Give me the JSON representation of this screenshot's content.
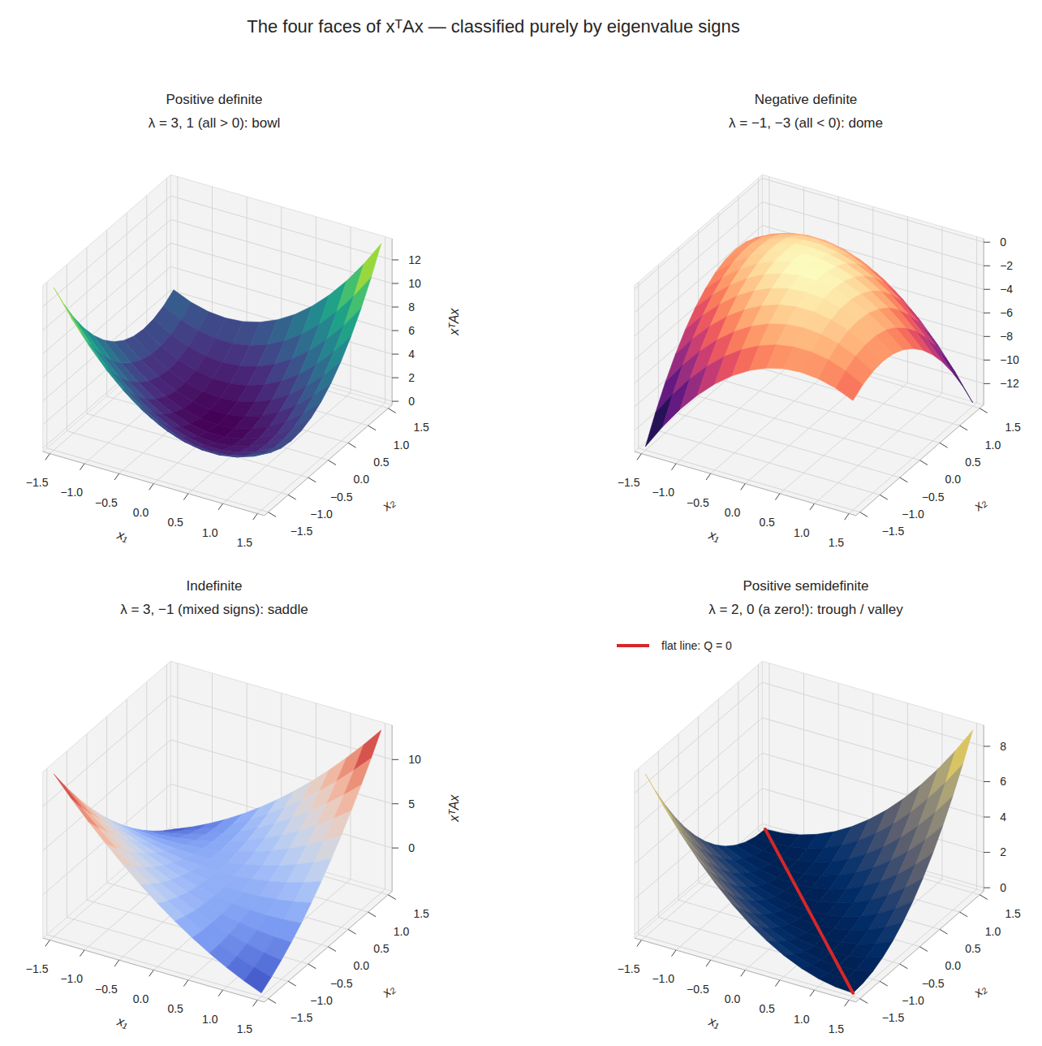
{
  "title": "The four faces of xᵀAx — classified purely by eigenvalue signs",
  "chart_data": [
    {
      "type": "surface",
      "title": "Positive definite",
      "subtitle": "λ = 3, 1 (all > 0): bowl",
      "x_label": "x₁",
      "y_label": "x₂",
      "z_label": "xᵀAx",
      "x": [
        -1.5,
        -1.25,
        -1,
        -0.75,
        -0.5,
        -0.25,
        0,
        0.25,
        0.5,
        0.75,
        1,
        1.25,
        1.5
      ],
      "y": [
        -1.5,
        -1.25,
        -1,
        -0.75,
        -0.5,
        -0.25,
        0,
        0.25,
        0.5,
        0.75,
        1,
        1.25,
        1.5
      ],
      "z": [
        [
          13.5,
          11.375,
          9.5,
          7.875,
          6.5,
          5.375,
          4.5,
          3.875,
          3.5,
          3.375,
          3.5,
          3.875,
          4.5
        ],
        [
          11.375,
          9.375,
          7.625,
          6.125,
          4.875,
          3.875,
          3.125,
          2.625,
          2.375,
          2.375,
          2.625,
          3.125,
          3.875
        ],
        [
          9.5,
          7.625,
          6,
          4.625,
          3.5,
          2.625,
          2,
          1.625,
          1.5,
          1.625,
          2,
          2.625,
          3.5
        ],
        [
          7.875,
          6.125,
          4.625,
          3.375,
          2.375,
          1.625,
          1.125,
          0.875,
          0.875,
          1.125,
          1.625,
          2.375,
          3.375
        ],
        [
          6.5,
          4.875,
          3.5,
          2.375,
          1.5,
          0.875,
          0.5,
          0.375,
          0.5,
          0.875,
          1.5,
          2.375,
          3.5
        ],
        [
          5.375,
          3.875,
          2.625,
          1.625,
          0.875,
          0.375,
          0.125,
          0.125,
          0.375,
          0.875,
          1.625,
          2.625,
          3.875
        ],
        [
          4.5,
          3.125,
          2,
          1.125,
          0.5,
          0.125,
          0,
          0.125,
          0.5,
          1.125,
          2,
          3.125,
          4.5
        ],
        [
          3.875,
          2.625,
          1.625,
          0.875,
          0.375,
          0.125,
          0.125,
          0.375,
          0.875,
          1.625,
          2.625,
          3.875,
          5.375
        ],
        [
          3.5,
          2.375,
          1.5,
          0.875,
          0.5,
          0.375,
          0.5,
          0.875,
          1.5,
          2.375,
          3.5,
          4.875,
          6.5
        ],
        [
          3.375,
          2.375,
          1.625,
          1.125,
          0.875,
          0.875,
          1.125,
          1.625,
          2.375,
          3.375,
          4.625,
          6.125,
          7.875
        ],
        [
          3.5,
          2.625,
          2,
          1.625,
          1.5,
          1.625,
          2,
          2.625,
          3.5,
          4.625,
          6,
          7.625,
          9.5
        ],
        [
          3.875,
          3.125,
          2.625,
          2.375,
          2.375,
          2.625,
          3.125,
          3.875,
          4.875,
          6.125,
          7.625,
          9.375,
          11.375
        ],
        [
          4.5,
          3.875,
          3.5,
          3.375,
          3.5,
          3.875,
          4.5,
          5.375,
          6.5,
          7.875,
          9.5,
          11.375,
          13.5
        ]
      ],
      "xlim": [
        -1.6,
        1.6
      ],
      "ylim": [
        -1.6,
        1.6
      ],
      "zlim": [
        -0.3,
        13.8
      ],
      "xticks": [
        {
          "value": -1.5,
          "label": "−1.5"
        },
        {
          "value": -1,
          "label": "−1.0"
        },
        {
          "value": -0.5,
          "label": "−0.5"
        },
        {
          "value": 0,
          "label": "0.0"
        },
        0.5,
        {
          "value": 1,
          "label": "1.0"
        },
        1.5
      ],
      "yticks": [
        {
          "value": -1.5,
          "label": "−1.5"
        },
        {
          "value": -1,
          "label": "−1.0"
        },
        {
          "value": -0.5,
          "label": "−0.5"
        },
        {
          "value": 0,
          "label": "0.0"
        },
        0.5,
        {
          "value": 1,
          "label": "1.0"
        },
        1.5
      ],
      "zticks": [
        0,
        2,
        4,
        6,
        8,
        10,
        12
      ],
      "grid": true
    },
    {
      "type": "surface",
      "title": "Negative definite",
      "subtitle": "λ = −1, −3 (all < 0): dome",
      "x_label": "x₁",
      "y_label": "x₂",
      "x": [
        -1.5,
        -1.25,
        -1,
        -0.75,
        -0.5,
        -0.25,
        0,
        0.25,
        0.5,
        0.75,
        1,
        1.25,
        1.5
      ],
      "y": [
        -1.5,
        -1.25,
        -1,
        -0.75,
        -0.5,
        -0.25,
        0,
        0.25,
        0.5,
        0.75,
        1,
        1.25,
        1.5
      ],
      "z": [
        [
          -13.5,
          -11.375,
          -9.5,
          -7.875,
          -6.5,
          -5.375,
          -4.5,
          -3.875,
          -3.5,
          -3.375,
          -3.5,
          -3.875,
          -4.5
        ],
        [
          -11.375,
          -9.375,
          -7.625,
          -6.125,
          -4.875,
          -3.875,
          -3.125,
          -2.625,
          -2.375,
          -2.375,
          -2.625,
          -3.125,
          -3.875
        ],
        [
          -9.5,
          -7.625,
          -6,
          -4.625,
          -3.5,
          -2.625,
          -2,
          -1.625,
          -1.5,
          -1.625,
          -2,
          -2.625,
          -3.5
        ],
        [
          -7.875,
          -6.125,
          -4.625,
          -3.375,
          -2.375,
          -1.625,
          -1.125,
          -0.875,
          -0.875,
          -1.125,
          -1.625,
          -2.375,
          -3.375
        ],
        [
          -6.5,
          -4.875,
          -3.5,
          -2.375,
          -1.5,
          -0.875,
          -0.5,
          -0.375,
          -0.5,
          -0.875,
          -1.5,
          -2.375,
          -3.5
        ],
        [
          -5.375,
          -3.875,
          -2.625,
          -1.625,
          -0.875,
          -0.375,
          -0.125,
          -0.125,
          -0.375,
          -0.875,
          -1.625,
          -2.625,
          -3.875
        ],
        [
          -4.5,
          -3.125,
          -2,
          -1.125,
          -0.5,
          -0.125,
          0,
          -0.125,
          -0.5,
          -1.125,
          -2,
          -3.125,
          -4.5
        ],
        [
          -3.875,
          -2.625,
          -1.625,
          -0.875,
          -0.375,
          -0.125,
          -0.125,
          -0.375,
          -0.875,
          -1.625,
          -2.625,
          -3.875,
          -5.375
        ],
        [
          -3.5,
          -2.375,
          -1.5,
          -0.875,
          -0.5,
          -0.375,
          -0.5,
          -0.875,
          -1.5,
          -2.375,
          -3.5,
          -4.875,
          -6.5
        ],
        [
          -3.375,
          -2.375,
          -1.625,
          -1.125,
          -0.875,
          -0.875,
          -1.125,
          -1.625,
          -2.375,
          -3.375,
          -4.625,
          -6.125,
          -7.875
        ],
        [
          -3.5,
          -2.625,
          -2,
          -1.625,
          -1.5,
          -1.625,
          -2,
          -2.625,
          -3.5,
          -4.625,
          -6,
          -7.625,
          -9.5
        ],
        [
          -3.875,
          -3.125,
          -2.625,
          -2.375,
          -2.375,
          -2.625,
          -3.125,
          -3.875,
          -4.875,
          -6.125,
          -7.625,
          -9.375,
          -11.375
        ],
        [
          -4.5,
          -3.875,
          -3.5,
          -3.375,
          -3.5,
          -3.875,
          -4.5,
          -5.375,
          -6.5,
          -7.875,
          -9.5,
          -11.375,
          -13.5
        ]
      ],
      "xlim": [
        -1.6,
        1.6
      ],
      "ylim": [
        -1.6,
        1.6
      ],
      "zlim": [
        -13.8,
        0.3
      ],
      "xticks": [
        {
          "value": -1.5,
          "label": "−1.5"
        },
        {
          "value": -1,
          "label": "−1.0"
        },
        {
          "value": -0.5,
          "label": "−0.5"
        },
        {
          "value": 0,
          "label": "0.0"
        },
        0.5,
        {
          "value": 1,
          "label": "1.0"
        },
        1.5
      ],
      "yticks": [
        {
          "value": -1.5,
          "label": "−1.5"
        },
        {
          "value": -1,
          "label": "−1.0"
        },
        {
          "value": -0.5,
          "label": "−0.5"
        },
        {
          "value": 0,
          "label": "0.0"
        },
        0.5,
        {
          "value": 1,
          "label": "1.0"
        },
        1.5
      ],
      "zticks": [
        {
          "value": -12,
          "label": "−12"
        },
        {
          "value": -10,
          "label": "−10"
        },
        {
          "value": -8,
          "label": "−8"
        },
        {
          "value": -6,
          "label": "−6"
        },
        {
          "value": -4,
          "label": "−4"
        },
        {
          "value": -2,
          "label": "−2"
        },
        0
      ],
      "grid": true
    },
    {
      "type": "surface",
      "title": "Indefinite",
      "subtitle": "λ = 3, −1 (mixed signs): saddle",
      "x_label": "x₁",
      "y_label": "x₂",
      "z_label": "xᵀAx",
      "x": [
        -1.5,
        -1.25,
        -1,
        -0.75,
        -0.5,
        -0.25,
        0,
        0.25,
        0.5,
        0.75,
        1,
        1.25,
        1.5
      ],
      "y": [
        -1.5,
        -1.25,
        -1,
        -0.75,
        -0.5,
        -0.25,
        0,
        0.25,
        0.5,
        0.75,
        1,
        1.25,
        1.5
      ],
      "z": [
        [
          13.5,
          11.3125,
          9.25,
          7.3125,
          5.5,
          3.8125,
          2.25,
          0.8125,
          -0.5,
          -1.6875,
          -2.75,
          -3.6875,
          -4.5
        ],
        [
          11.3125,
          9.375,
          7.5625,
          5.875,
          4.3125,
          2.875,
          1.5625,
          0.375,
          -0.6875,
          -1.625,
          -2.4375,
          -3.125,
          -3.6875
        ],
        [
          9.25,
          7.5625,
          6,
          4.5625,
          3.25,
          2.0625,
          1,
          0.0625,
          -0.75,
          -1.4375,
          -2,
          -2.4375,
          -2.75
        ],
        [
          7.3125,
          5.875,
          4.5625,
          3.375,
          2.3125,
          1.375,
          0.5625,
          -0.125,
          -0.6875,
          -1.125,
          -1.4375,
          -1.625,
          -1.6875
        ],
        [
          5.5,
          4.3125,
          3.25,
          2.3125,
          1.5,
          0.8125,
          0.25,
          -0.1875,
          -0.5,
          -0.6875,
          -0.75,
          -0.6875,
          -0.5
        ],
        [
          3.8125,
          2.875,
          2.0625,
          1.375,
          0.8125,
          0.375,
          0.0625,
          -0.125,
          -0.1875,
          -0.125,
          0.0625,
          0.375,
          0.8125
        ],
        [
          2.25,
          1.5625,
          1,
          0.5625,
          0.25,
          0.0625,
          0,
          0.0625,
          0.25,
          0.5625,
          1,
          1.5625,
          2.25
        ],
        [
          0.8125,
          0.375,
          0.0625,
          -0.125,
          -0.1875,
          -0.125,
          0.0625,
          0.375,
          0.8125,
          1.375,
          2.0625,
          2.875,
          3.8125
        ],
        [
          -0.5,
          -0.6875,
          -0.75,
          -0.6875,
          -0.5,
          -0.1875,
          0.25,
          0.8125,
          1.5,
          2.3125,
          3.25,
          4.3125,
          5.5
        ],
        [
          -1.6875,
          -1.625,
          -1.4375,
          -1.125,
          -0.6875,
          -0.125,
          0.5625,
          1.375,
          2.3125,
          3.375,
          4.5625,
          5.875,
          7.3125
        ],
        [
          -2.75,
          -2.4375,
          -2,
          -1.4375,
          -0.75,
          0.0625,
          1,
          2.0625,
          3.25,
          4.5625,
          6,
          7.5625,
          9.25
        ],
        [
          -3.6875,
          -3.125,
          -2.4375,
          -1.625,
          -0.6875,
          0.375,
          1.5625,
          2.875,
          4.3125,
          5.875,
          7.5625,
          9.375,
          11.3125
        ],
        [
          -4.5,
          -3.6875,
          -2.75,
          -1.6875,
          -0.5,
          0.8125,
          2.25,
          3.8125,
          5.5,
          7.3125,
          9.25,
          11.3125,
          13.5
        ]
      ],
      "xlim": [
        -1.6,
        1.6
      ],
      "ylim": [
        -1.6,
        1.6
      ],
      "zlim": [
        -4.9,
        13.9
      ],
      "xticks": [
        {
          "value": -1.5,
          "label": "−1.5"
        },
        {
          "value": -1,
          "label": "−1.0"
        },
        {
          "value": -0.5,
          "label": "−0.5"
        },
        {
          "value": 0,
          "label": "0.0"
        },
        0.5,
        {
          "value": 1,
          "label": "1.0"
        },
        1.5
      ],
      "yticks": [
        {
          "value": -1.5,
          "label": "−1.5"
        },
        {
          "value": -1,
          "label": "−1.0"
        },
        {
          "value": -0.5,
          "label": "−0.5"
        },
        {
          "value": 0,
          "label": "0.0"
        },
        0.5,
        {
          "value": 1,
          "label": "1.0"
        },
        1.5
      ],
      "zticks": [
        0,
        5,
        10
      ],
      "grid": true
    },
    {
      "type": "surface",
      "title": "Positive semidefinite",
      "subtitle": "λ = 2, 0 (a zero!): trough / valley",
      "x_label": "x₁",
      "y_label": "x₂",
      "x": [
        -1.5,
        -1.25,
        -1,
        -0.75,
        -0.5,
        -0.25,
        0,
        0.25,
        0.5,
        0.75,
        1,
        1.25,
        1.5
      ],
      "y": [
        -1.5,
        -1.25,
        -1,
        -0.75,
        -0.5,
        -0.25,
        0,
        0.25,
        0.5,
        0.75,
        1,
        1.25,
        1.5
      ],
      "z": [
        [
          9,
          7.5625,
          6.25,
          5.0625,
          4,
          3.0625,
          2.25,
          1.5625,
          1,
          0.5625,
          0.25,
          0.0625,
          0
        ],
        [
          7.5625,
          6.25,
          5.0625,
          4,
          3.0625,
          2.25,
          1.5625,
          1,
          0.5625,
          0.25,
          0.0625,
          0,
          0.0625
        ],
        [
          6.25,
          5.0625,
          4,
          3.0625,
          2.25,
          1.5625,
          1,
          0.5625,
          0.25,
          0.0625,
          0,
          0.0625,
          0.25
        ],
        [
          5.0625,
          4,
          3.0625,
          2.25,
          1.5625,
          1,
          0.5625,
          0.25,
          0.0625,
          0,
          0.0625,
          0.25,
          0.5625
        ],
        [
          4,
          3.0625,
          2.25,
          1.5625,
          1,
          0.5625,
          0.25,
          0.0625,
          0,
          0.0625,
          0.25,
          0.5625,
          1
        ],
        [
          3.0625,
          2.25,
          1.5625,
          1,
          0.5625,
          0.25,
          0.0625,
          0,
          0.0625,
          0.25,
          0.5625,
          1,
          1.5625
        ],
        [
          2.25,
          1.5625,
          1,
          0.5625,
          0.25,
          0.0625,
          0,
          0.0625,
          0.25,
          0.5625,
          1,
          1.5625,
          2.25
        ],
        [
          1.5625,
          1,
          0.5625,
          0.25,
          0.0625,
          0,
          0.0625,
          0.25,
          0.5625,
          1,
          1.5625,
          2.25,
          3.0625
        ],
        [
          1,
          0.5625,
          0.25,
          0.0625,
          0,
          0.0625,
          0.25,
          0.5625,
          1,
          1.5625,
          2.25,
          3.0625,
          4
        ],
        [
          0.5625,
          0.25,
          0.0625,
          0,
          0.0625,
          0.25,
          0.5625,
          1,
          1.5625,
          2.25,
          3.0625,
          4,
          5.0625
        ],
        [
          0.25,
          0.0625,
          0,
          0.0625,
          0.25,
          0.5625,
          1,
          1.5625,
          2.25,
          3.0625,
          4,
          5.0625,
          6.25
        ],
        [
          0.0625,
          0,
          0.0625,
          0.25,
          0.5625,
          1,
          1.5625,
          2.25,
          3.0625,
          4,
          5.0625,
          6.25,
          7.5625
        ],
        [
          0,
          0.0625,
          0.25,
          0.5625,
          1,
          1.5625,
          2.25,
          3.0625,
          4,
          5.0625,
          6.25,
          7.5625,
          9
        ]
      ],
      "series": [
        {
          "name": "flat line: Q = 0",
          "type": "line",
          "color": "#d62728",
          "x": [
            -1.5,
            1.5
          ],
          "y": [
            1.5,
            -1.5
          ],
          "z": [
            0,
            0
          ]
        }
      ],
      "legend": "upper left",
      "xlim": [
        -1.6,
        1.6
      ],
      "ylim": [
        -1.6,
        1.6
      ],
      "zlim": [
        -0.2,
        9.2
      ],
      "xticks": [
        {
          "value": -1.5,
          "label": "−1.5"
        },
        {
          "value": -1,
          "label": "−1.0"
        },
        {
          "value": -0.5,
          "label": "−0.5"
        },
        {
          "value": 0,
          "label": "0.0"
        },
        0.5,
        {
          "value": 1,
          "label": "1.0"
        },
        1.5
      ],
      "yticks": [
        {
          "value": -1.5,
          "label": "−1.5"
        },
        {
          "value": -1,
          "label": "−1.0"
        },
        {
          "value": -0.5,
          "label": "−0.5"
        },
        {
          "value": 0,
          "label": "0.0"
        },
        0.5,
        {
          "value": 1,
          "label": "1.0"
        },
        1.5
      ],
      "zticks": [
        0,
        2,
        4,
        6,
        8
      ],
      "grid": true
    }
  ]
}
